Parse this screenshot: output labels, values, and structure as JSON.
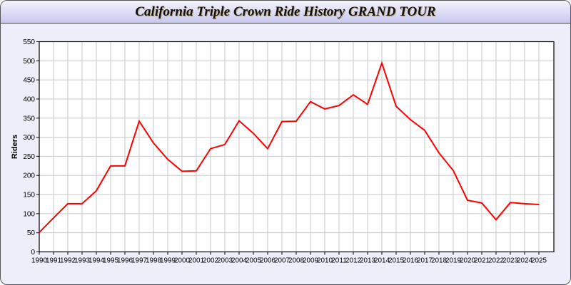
{
  "chart_data": {
    "type": "line",
    "title": "California Triple Crown Ride History GRAND TOUR",
    "xlabel": "",
    "ylabel": "Riders",
    "ylim": [
      0,
      550
    ],
    "yticks": [
      0,
      50,
      100,
      150,
      200,
      250,
      300,
      350,
      400,
      450,
      500,
      550
    ],
    "grid": true,
    "line_color": "#ff0000",
    "categories": [
      "1990",
      "1991",
      "1992",
      "1993",
      "1994",
      "1995",
      "1996",
      "1997",
      "1998",
      "1999",
      "2000",
      "2001",
      "2002",
      "2003",
      "2004",
      "2005",
      "2006",
      "2007",
      "2008",
      "2009",
      "2010",
      "2011",
      "2012",
      "2013",
      "2014",
      "2015",
      "2016",
      "2017",
      "2018",
      "2019",
      "2020",
      "2021",
      "2022",
      "2023",
      "2024",
      "2025"
    ],
    "series": [
      {
        "values": [
          51,
          89,
          126,
          126,
          160,
          225,
          225,
          342,
          285,
          242,
          211,
          212,
          270,
          281,
          343,
          310,
          270,
          341,
          342,
          393,
          374,
          383,
          411,
          386,
          494,
          381,
          346,
          318,
          259,
          213,
          135,
          128,
          84,
          129,
          126,
          124
        ]
      }
    ]
  }
}
